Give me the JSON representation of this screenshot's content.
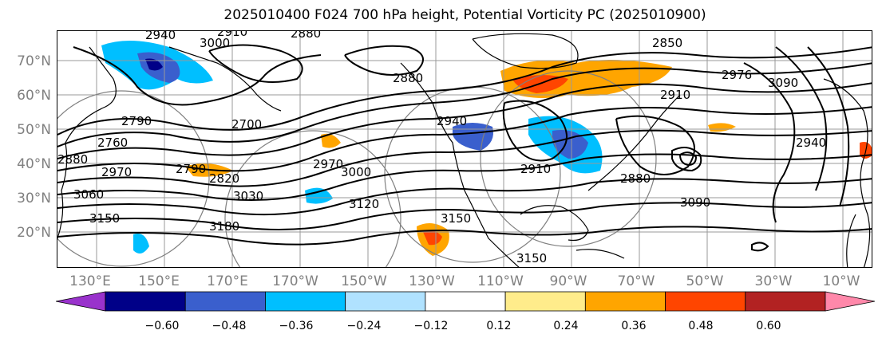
{
  "title": "2025010400 F024 700 hPa height, Potential Vorticity PC (2025010900)",
  "lat_labels": [
    "70°N",
    "60°N",
    "50°N",
    "40°N",
    "30°N",
    "20°N"
  ],
  "lon_labels": [
    "130°E",
    "150°E",
    "170°E",
    "170°W",
    "150°W",
    "130°W",
    "110°W",
    "90°W",
    "70°W",
    "50°W",
    "30°W",
    "10°W"
  ],
  "contour_labels": [
    "2940",
    "3000",
    "2910",
    "2880",
    "2850",
    "2790",
    "2760",
    "2700",
    "2880",
    "2970",
    "2790",
    "3060",
    "2970",
    "3150",
    "2880",
    "2940",
    "2820",
    "3090",
    "3030",
    "3120",
    "3000",
    "3150",
    "3180",
    "2910",
    "2880",
    "3090",
    "2910",
    "2940",
    "3150",
    "2976"
  ],
  "colorbar": {
    "ticks": [
      "−0.60",
      "−0.48",
      "−0.36",
      "−0.24",
      "−0.12",
      "0.12",
      "0.24",
      "0.36",
      "0.48",
      "0.60"
    ],
    "colors": [
      "#9932cc",
      "#000088",
      "#3a5fcd",
      "#00bfff",
      "#b0e2ff",
      "#ffffff",
      "#ffec8b",
      "#ffa500",
      "#ff4500",
      "#b22222",
      "#ff88aa"
    ]
  },
  "palette": {
    "contour": "#000000",
    "coast": "#000000",
    "grid": "#999999",
    "axis_text": "#808080"
  }
}
